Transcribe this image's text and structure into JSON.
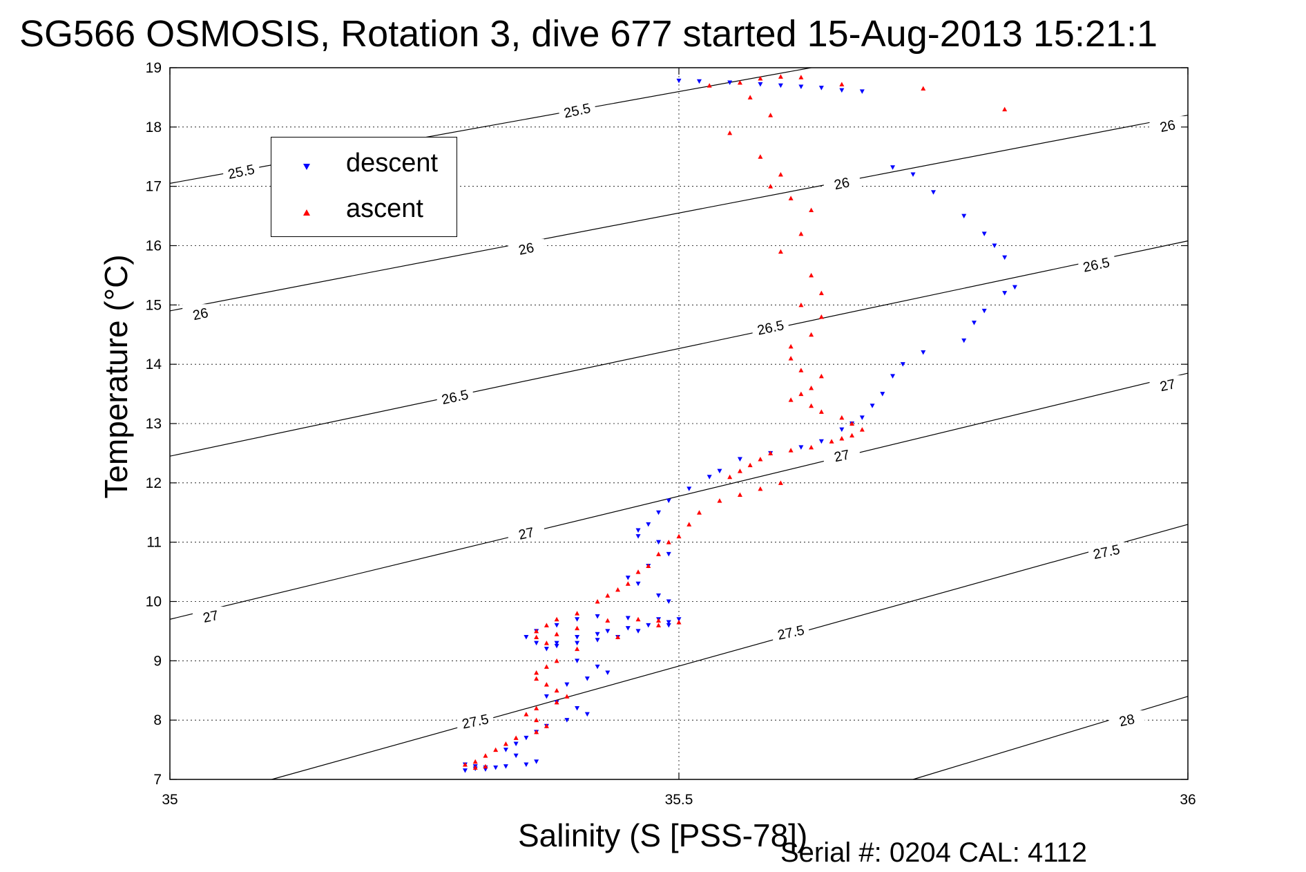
{
  "chart_data": {
    "type": "scatter",
    "title": "SG566 OSMOSIS, Rotation 3, dive 677 started 15-Aug-2013 15:21:1",
    "xlabel": "Salinity (S [PSS-78])",
    "ylabel": "Temperature (°C)",
    "xlim": [
      35,
      36
    ],
    "ylim": [
      7,
      19
    ],
    "x_ticks": [
      "35",
      "35.5",
      "36"
    ],
    "y_ticks": [
      "7",
      "8",
      "9",
      "10",
      "11",
      "12",
      "13",
      "14",
      "15",
      "16",
      "17",
      "18",
      "19"
    ],
    "grid": true,
    "legend_position": "top-left",
    "footer_text": "Serial #: 0204  CAL: 4112",
    "series": [
      {
        "name": "descent",
        "marker": "down-triangle",
        "color": "#0000ff",
        "x": [
          35.5,
          35.52,
          35.55,
          35.58,
          35.6,
          35.62,
          35.64,
          35.66,
          35.68,
          35.71,
          35.73,
          35.75,
          35.78,
          35.8,
          35.81,
          35.82,
          35.83,
          35.82,
          35.8,
          35.79,
          35.78,
          35.74,
          35.72,
          35.71,
          35.7,
          35.69,
          35.68,
          35.67,
          35.66,
          35.64,
          35.62,
          35.59,
          35.56,
          35.54,
          35.53,
          35.51,
          35.49,
          35.48,
          35.47,
          35.46,
          35.46,
          35.48,
          35.49,
          35.47,
          35.45,
          35.46,
          35.48,
          35.49,
          35.5,
          35.49,
          35.46,
          35.44,
          35.42,
          35.4,
          35.38,
          35.37,
          35.36,
          35.35,
          35.36,
          35.38,
          35.4,
          35.42,
          35.45,
          35.48,
          35.49,
          35.47,
          35.45,
          35.43,
          35.42,
          35.4,
          35.38,
          35.4,
          35.42,
          35.43,
          35.41,
          35.39,
          35.37,
          35.38,
          35.4,
          35.41,
          35.39,
          35.37,
          35.36,
          35.35,
          35.34,
          35.33,
          35.34,
          35.36,
          35.35,
          35.33,
          35.31,
          35.3,
          35.29,
          35.31,
          35.32,
          35.3,
          35.29
        ],
        "y": [
          18.78,
          18.77,
          18.75,
          18.72,
          18.7,
          18.68,
          18.66,
          18.62,
          18.6,
          17.32,
          17.2,
          16.9,
          16.5,
          16.2,
          16.0,
          15.8,
          15.3,
          15.2,
          14.9,
          14.7,
          14.4,
          14.2,
          14.0,
          13.8,
          13.5,
          13.3,
          13.1,
          13.0,
          12.9,
          12.7,
          12.6,
          12.5,
          12.4,
          12.2,
          12.1,
          11.9,
          11.7,
          11.5,
          11.3,
          11.2,
          11.1,
          11.0,
          10.8,
          10.6,
          10.4,
          10.3,
          10.1,
          10.0,
          9.7,
          9.6,
          9.5,
          9.4,
          9.35,
          9.3,
          9.25,
          9.2,
          9.3,
          9.4,
          9.5,
          9.6,
          9.7,
          9.75,
          9.72,
          9.7,
          9.65,
          9.6,
          9.55,
          9.5,
          9.45,
          9.4,
          9.3,
          9.0,
          8.9,
          8.8,
          8.7,
          8.6,
          8.4,
          8.3,
          8.2,
          8.1,
          8.0,
          7.9,
          7.8,
          7.7,
          7.6,
          7.5,
          7.4,
          7.3,
          7.25,
          7.22,
          7.2,
          7.18,
          7.15,
          7.17,
          7.2,
          7.22,
          7.25
        ]
      },
      {
        "name": "ascent",
        "marker": "up-triangle",
        "color": "#ff0000",
        "x": [
          35.53,
          35.56,
          35.58,
          35.6,
          35.62,
          35.66,
          35.74,
          35.82,
          35.57,
          35.59,
          35.55,
          35.58,
          35.6,
          35.59,
          35.61,
          35.63,
          35.62,
          35.6,
          35.63,
          35.64,
          35.62,
          35.64,
          35.63,
          35.61,
          35.61,
          35.62,
          35.64,
          35.63,
          35.62,
          35.61,
          35.63,
          35.64,
          35.66,
          35.67,
          35.68,
          35.67,
          35.66,
          35.65,
          35.63,
          35.61,
          35.59,
          35.58,
          35.57,
          35.56,
          35.55,
          35.6,
          35.58,
          35.56,
          35.54,
          35.52,
          35.51,
          35.5,
          35.49,
          35.48,
          35.47,
          35.46,
          35.45,
          35.44,
          35.43,
          35.42,
          35.4,
          35.38,
          35.37,
          35.36,
          35.36,
          35.37,
          35.38,
          35.4,
          35.43,
          35.46,
          35.48,
          35.5,
          35.48,
          35.44,
          35.4,
          35.38,
          35.37,
          35.36,
          35.36,
          35.37,
          35.38,
          35.39,
          35.38,
          35.36,
          35.35,
          35.36,
          35.37,
          35.36,
          35.34,
          35.33,
          35.32,
          35.31,
          35.3,
          35.29,
          35.3,
          35.31
        ],
        "y": [
          18.7,
          18.75,
          18.82,
          18.85,
          18.84,
          18.72,
          18.65,
          18.3,
          18.5,
          18.2,
          17.9,
          17.5,
          17.2,
          17.0,
          16.8,
          16.6,
          16.2,
          15.9,
          15.5,
          15.2,
          15.0,
          14.8,
          14.5,
          14.3,
          14.1,
          13.9,
          13.8,
          13.6,
          13.5,
          13.4,
          13.3,
          13.2,
          13.1,
          13.0,
          12.9,
          12.8,
          12.75,
          12.7,
          12.6,
          12.55,
          12.5,
          12.4,
          12.3,
          12.2,
          12.1,
          12.0,
          11.9,
          11.8,
          11.7,
          11.5,
          11.3,
          11.1,
          11.0,
          10.8,
          10.6,
          10.5,
          10.3,
          10.2,
          10.1,
          10.0,
          9.8,
          9.7,
          9.6,
          9.5,
          9.4,
          9.3,
          9.45,
          9.55,
          9.68,
          9.7,
          9.68,
          9.65,
          9.6,
          9.4,
          9.2,
          9.0,
          8.9,
          8.8,
          8.7,
          8.6,
          8.5,
          8.4,
          8.3,
          8.2,
          8.1,
          8.0,
          7.9,
          7.8,
          7.7,
          7.6,
          7.5,
          7.4,
          7.3,
          7.25,
          7.2,
          7.22
        ]
      }
    ],
    "contours": [
      {
        "label": "25.5",
        "start": [
          35.0,
          17.05
        ],
        "end": [
          35.63,
          19.0
        ]
      },
      {
        "label": "26",
        "start": [
          35.0,
          14.9
        ],
        "end": [
          36.0,
          18.2
        ]
      },
      {
        "label": "26.5",
        "start": [
          35.0,
          12.45
        ],
        "end": [
          36.0,
          16.08
        ]
      },
      {
        "label": "27",
        "start": [
          35.0,
          9.7
        ],
        "end": [
          36.0,
          13.85
        ]
      },
      {
        "label": "27.5",
        "start": [
          35.1,
          7.0
        ],
        "end": [
          36.0,
          11.3
        ]
      },
      {
        "label": "28",
        "start": [
          35.73,
          7.0
        ],
        "end": [
          36.0,
          8.4
        ]
      }
    ],
    "contour_labels": [
      {
        "text": "25.5",
        "x": 35.07,
        "y": 17.25
      },
      {
        "text": "25.5",
        "x": 35.4,
        "y": 18.28
      },
      {
        "text": "26",
        "x": 35.03,
        "y": 14.85
      },
      {
        "text": "26",
        "x": 35.35,
        "y": 15.95
      },
      {
        "text": "26",
        "x": 35.66,
        "y": 17.05
      },
      {
        "text": "26",
        "x": 35.98,
        "y": 18.02
      },
      {
        "text": "26.5",
        "x": 35.28,
        "y": 13.45
      },
      {
        "text": "26.5",
        "x": 35.59,
        "y": 14.62
      },
      {
        "text": "26.5",
        "x": 35.91,
        "y": 15.68
      },
      {
        "text": "27",
        "x": 35.04,
        "y": 9.75
      },
      {
        "text": "27",
        "x": 35.35,
        "y": 11.15
      },
      {
        "text": "27",
        "x": 35.66,
        "y": 12.46
      },
      {
        "text": "27",
        "x": 35.98,
        "y": 13.65
      },
      {
        "text": "27.5",
        "x": 35.3,
        "y": 7.98
      },
      {
        "text": "27.5",
        "x": 35.61,
        "y": 9.48
      },
      {
        "text": "27.5",
        "x": 35.92,
        "y": 10.84
      },
      {
        "text": "28",
        "x": 35.94,
        "y": 8.0
      }
    ]
  }
}
